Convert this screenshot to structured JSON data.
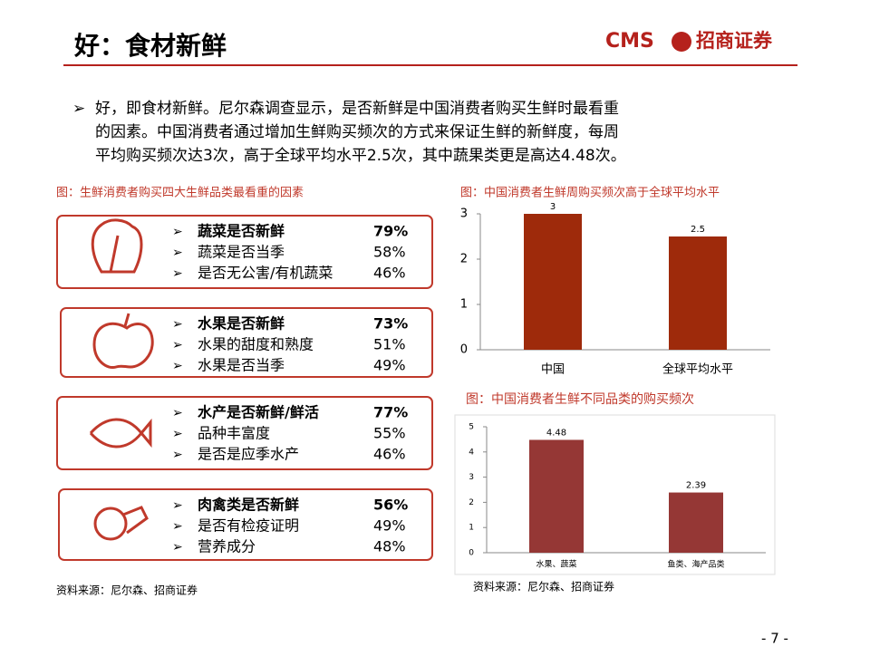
{
  "header": {
    "title": "好：食材新鲜",
    "logo_latin": "CMS",
    "logo_cn": "招商证券"
  },
  "intro": {
    "bullet": "➢",
    "lines": [
      "好，即食材新鲜。尼尔森调查显示，是否新鲜是中国消费者购买生鲜时最看重",
      "的因素。中国消费者通过增加生鲜购买频次的方式来保证生鲜的新鲜度，每周",
      "平均购买频次达3次，高于全球平均水平2.5次，其中蔬果类更是高达4.48次。"
    ]
  },
  "left_panel": {
    "caption": "图：生鲜消费者购买四大生鲜品类最看重的因素",
    "groups": [
      {
        "items": [
          {
            "bullet": "➢",
            "text": "蔬菜是否新鲜",
            "value": "79%"
          },
          {
            "bullet": "➢",
            "text": "蔬菜是否当季",
            "value": "58%"
          },
          {
            "bullet": "➢",
            "text": "是否无公害/有机蔬菜",
            "value": "46%"
          }
        ]
      },
      {
        "items": [
          {
            "bullet": "➢",
            "text": "水果是否新鲜",
            "value": "73%"
          },
          {
            "bullet": "➢",
            "text": "水果的甜度和熟度",
            "value": "51%"
          },
          {
            "bullet": "➢",
            "text": "水果是否当季",
            "value": "49%"
          }
        ]
      },
      {
        "items": [
          {
            "bullet": "➢",
            "text": "水产是否新鲜/鲜活",
            "value": "77%"
          },
          {
            "bullet": "➢",
            "text": "品种丰富度",
            "value": "55%"
          },
          {
            "bullet": "➢",
            "text": "是否是应季水产",
            "value": "46%"
          }
        ]
      },
      {
        "items": [
          {
            "bullet": "➢",
            "text": "肉禽类是否新鲜",
            "value": "56%"
          },
          {
            "bullet": "➢",
            "text": "是否有检疫证明",
            "value": "49%"
          },
          {
            "bullet": "➢",
            "text": "营养成分",
            "value": "48%"
          }
        ]
      }
    ],
    "source": "资料来源：尼尔森、招商证券"
  },
  "chart_data": [
    {
      "type": "bar",
      "title": "图：中国消费者生鲜周购买频次高于全球平均水平",
      "categories": [
        "中国",
        "全球平均水平"
      ],
      "values": [
        3,
        2.5
      ],
      "color": "#9e2a0b",
      "ylim": [
        0,
        3
      ],
      "yticks": [
        0,
        1,
        2,
        3
      ],
      "grid": false
    },
    {
      "type": "bar",
      "title": "图：中国消费者生鲜不同品类的购买频次",
      "categories": [
        "水果、蔬菜",
        "鱼类、海产品类"
      ],
      "values": [
        4.48,
        2.39
      ],
      "color": "#953735",
      "ylim": [
        0,
        5
      ],
      "yticks": [
        0,
        1,
        2,
        3,
        4,
        5
      ],
      "grid": false
    }
  ],
  "right_source": "资料来源：尼尔森、招商证券",
  "page_number": "- 7 -"
}
